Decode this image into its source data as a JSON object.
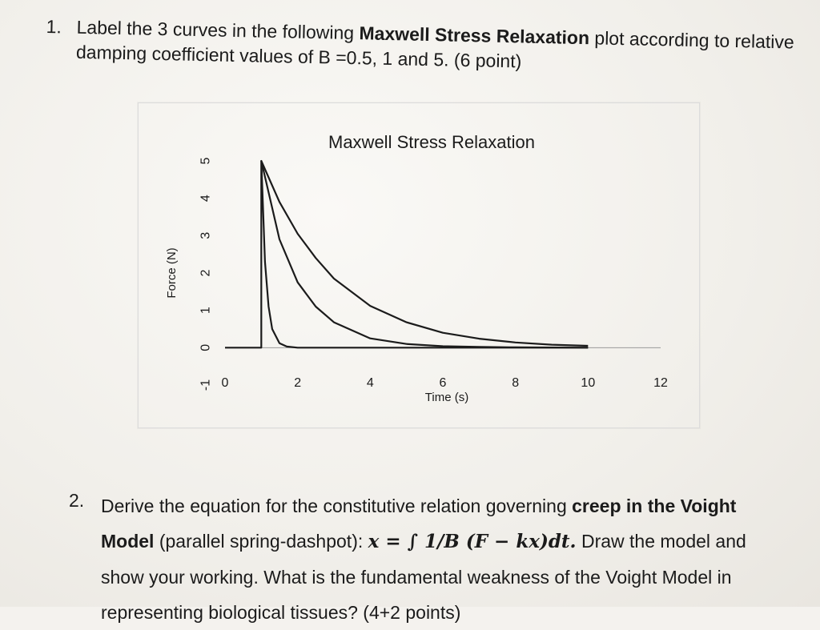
{
  "question1": {
    "number": "1.",
    "text_a": "Label the 3 curves in the following ",
    "bold": "Maxwell Stress Relaxation",
    "text_b": " plot according to relative damping coefficient values of B =0.5, 1 and 5. (6 point)"
  },
  "question2": {
    "number": "2.",
    "text_a": "Derive the equation for the constitutive relation governing ",
    "bold1": "creep in the Voight Model",
    "text_b": " (parallel spring-dashpot): ",
    "equation": "x = ∫ 1/B (F − kx)dt.",
    "text_c": " Draw the model and show your working. What is the fundamental weakness of the Voight Model in representing biological tissues? (4+2 points)"
  },
  "chart_data": {
    "type": "line",
    "title": "Maxwell Stress Relaxation",
    "xlabel": "Time (s)",
    "ylabel": "Force (N)",
    "xlim": [
      0,
      12
    ],
    "ylim": [
      -1,
      5
    ],
    "x_ticks": [
      "0",
      "2",
      "4",
      "6",
      "8",
      "10",
      "12"
    ],
    "y_ticks": [
      "5",
      "4",
      "3",
      "2",
      "1",
      "0",
      "-1"
    ],
    "grid": false,
    "legend": "none",
    "series": [
      {
        "x": [
          0,
          1,
          1,
          1.1,
          1.2,
          1.3,
          1.5,
          1.7,
          2,
          3,
          4,
          6,
          8,
          10
        ],
        "y": [
          0,
          0,
          5,
          2.3,
          1.1,
          0.5,
          0.12,
          0.03,
          0,
          0,
          0,
          0,
          0,
          0
        ]
      },
      {
        "x": [
          1,
          1.5,
          2,
          2.5,
          3,
          4,
          5,
          6,
          7,
          8,
          10
        ],
        "y": [
          5,
          2.9,
          1.75,
          1.1,
          0.68,
          0.25,
          0.1,
          0.04,
          0.02,
          0.01,
          0
        ]
      },
      {
        "x": [
          1,
          1.5,
          2,
          2.5,
          3,
          4,
          5,
          6,
          7,
          8,
          9,
          10
        ],
        "y": [
          5,
          3.9,
          3.05,
          2.4,
          1.85,
          1.12,
          0.68,
          0.4,
          0.24,
          0.14,
          0.08,
          0.05
        ]
      }
    ],
    "colors": {
      "line": "#1b1b1b",
      "axis": "#9a9a9a"
    }
  }
}
